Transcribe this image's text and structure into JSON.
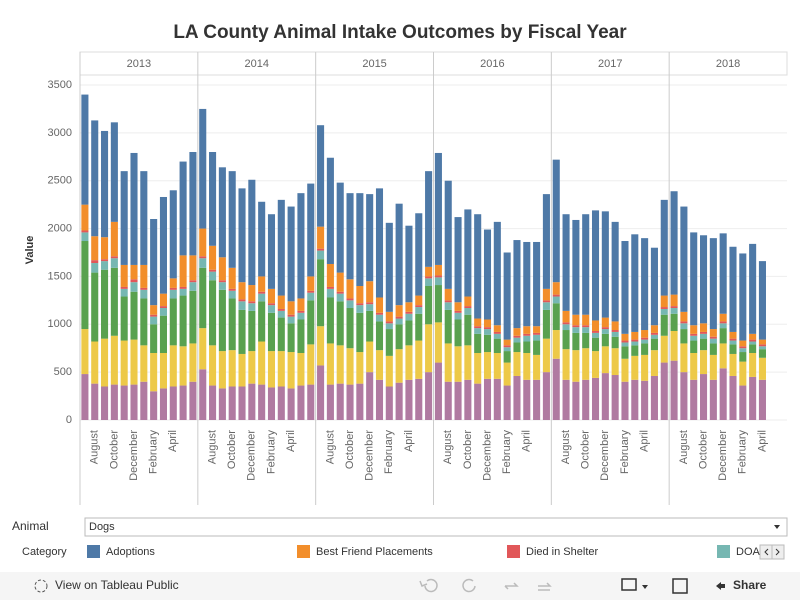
{
  "chart_data": {
    "type": "bar",
    "stacked": true,
    "title": "LA County Animal Intake Outcomes by Fiscal Year",
    "y_label": "Value",
    "ylim": [
      0,
      3500
    ],
    "yticks": [
      0,
      500,
      1000,
      1500,
      2000,
      2500,
      3000,
      3500
    ],
    "grid": true,
    "legend_title": "Category",
    "series": [
      {
        "name": "Adoptions",
        "color": "#4e79a7"
      },
      {
        "name": "Best Friend Placements",
        "color": "#f28e2b"
      },
      {
        "name": "Died in Shelter",
        "color": "#e15759"
      },
      {
        "name": "DOA",
        "color": "#76b7b2"
      },
      {
        "color": "#59a14f"
      },
      {
        "color": "#edc948"
      },
      {
        "color": "#b07aa1"
      }
    ],
    "panels": [
      {
        "title": "2013",
        "categories": [
          null,
          "August",
          null,
          "October",
          null,
          "December",
          null,
          "February",
          null,
          "April",
          null,
          null
        ],
        "values": [
          [
            1150,
            1210,
            1110,
            1040,
            980,
            1170,
            980,
            900,
            1010,
            920,
            980,
            1080
          ],
          [
            270,
            250,
            230,
            360,
            230,
            150,
            240,
            100,
            130,
            100,
            330,
            260
          ],
          [
            20,
            30,
            20,
            20,
            20,
            30,
            20,
            20,
            20,
            20,
            20,
            20
          ],
          [
            90,
            100,
            90,
            100,
            80,
            100,
            90,
            80,
            80,
            90,
            70,
            90
          ],
          [
            920,
            720,
            720,
            710,
            460,
            500,
            490,
            300,
            390,
            490,
            530,
            550
          ],
          [
            470,
            440,
            500,
            510,
            470,
            470,
            380,
            400,
            370,
            430,
            410,
            400
          ],
          [
            480,
            380,
            350,
            370,
            360,
            370,
            400,
            300,
            330,
            350,
            360,
            400
          ]
        ]
      },
      {
        "title": "2014",
        "categories": [
          null,
          "August",
          null,
          "October",
          null,
          "December",
          null,
          "February",
          null,
          "April",
          null,
          null
        ],
        "values": [
          [
            1250,
            980,
            940,
            1010,
            980,
            1100,
            780,
            780,
            1000,
            990,
            1100,
            970
          ],
          [
            290,
            250,
            240,
            220,
            180,
            170,
            160,
            150,
            140,
            140,
            130,
            150
          ],
          [
            20,
            20,
            20,
            20,
            20,
            20,
            20,
            20,
            20,
            20,
            20,
            20
          ],
          [
            100,
            90,
            80,
            80,
            90,
            80,
            80,
            80,
            70,
            70,
            70,
            80
          ],
          [
            630,
            680,
            640,
            540,
            460,
            420,
            420,
            400,
            350,
            300,
            350,
            460
          ],
          [
            430,
            420,
            390,
            380,
            340,
            340,
            450,
            380,
            370,
            380,
            340,
            420
          ],
          [
            530,
            360,
            330,
            350,
            350,
            380,
            370,
            340,
            350,
            330,
            360,
            370
          ]
        ]
      },
      {
        "title": "2015",
        "categories": [
          null,
          "August",
          null,
          "October",
          null,
          "December",
          null,
          "February",
          null,
          "April",
          null,
          null
        ],
        "values": [
          [
            1060,
            1110,
            940,
            900,
            970,
            910,
            1140,
            930,
            1060,
            800,
            860,
            1000
          ],
          [
            230,
            240,
            200,
            200,
            180,
            220,
            160,
            100,
            120,
            100,
            100,
            100
          ],
          [
            20,
            20,
            20,
            20,
            20,
            20,
            20,
            20,
            20,
            20,
            20,
            20
          ],
          [
            90,
            90,
            80,
            80,
            80,
            70,
            70,
            60,
            60,
            70,
            70,
            80
          ],
          [
            700,
            480,
            460,
            420,
            410,
            320,
            300,
            280,
            260,
            260,
            280,
            400
          ],
          [
            410,
            430,
            400,
            380,
            330,
            320,
            310,
            320,
            350,
            360,
            400,
            500
          ],
          [
            570,
            370,
            380,
            370,
            380,
            500,
            420,
            350,
            390,
            420,
            430,
            500
          ]
        ]
      },
      {
        "title": "2016",
        "categories": [
          null,
          "August",
          null,
          "October",
          null,
          "December",
          null,
          "February",
          null,
          "April",
          null,
          null
        ],
        "values": [
          [
            1170,
            1130,
            890,
            910,
            1090,
            940,
            1080,
            910,
            920,
            880,
            880,
            990
          ],
          [
            110,
            120,
            90,
            100,
            80,
            80,
            70,
            60,
            80,
            80,
            70,
            120
          ],
          [
            20,
            20,
            20,
            20,
            20,
            20,
            20,
            20,
            20,
            20,
            20,
            20
          ],
          [
            80,
            80,
            70,
            70,
            60,
            60,
            50,
            40,
            50,
            60,
            60,
            80
          ],
          [
            390,
            350,
            280,
            320,
            200,
            180,
            150,
            120,
            100,
            120,
            150,
            300
          ],
          [
            420,
            400,
            370,
            360,
            320,
            280,
            270,
            240,
            250,
            280,
            260,
            350
          ],
          [
            600,
            400,
            400,
            420,
            380,
            430,
            430,
            360,
            460,
            420,
            420,
            500
          ]
        ]
      },
      {
        "title": "2017",
        "categories": [
          null,
          "August",
          null,
          "October",
          null,
          "December",
          null,
          "February",
          null,
          "April",
          null,
          null
        ],
        "values": [
          [
            1280,
            1010,
            990,
            1050,
            1150,
            1110,
            1040,
            970,
            1020,
            960,
            810,
            1000
          ],
          [
            130,
            120,
            110,
            110,
            110,
            100,
            90,
            70,
            80,
            80,
            80,
            120
          ],
          [
            20,
            20,
            20,
            20,
            20,
            20,
            20,
            20,
            20,
            20,
            20,
            20
          ],
          [
            70,
            60,
            60,
            60,
            50,
            50,
            50,
            40,
            40,
            40,
            40,
            60
          ],
          [
            280,
            200,
            180,
            160,
            140,
            130,
            120,
            130,
            110,
            120,
            120,
            220
          ],
          [
            300,
            320,
            330,
            330,
            280,
            280,
            280,
            240,
            250,
            270,
            270,
            280
          ],
          [
            640,
            420,
            400,
            420,
            440,
            490,
            470,
            400,
            420,
            410,
            460,
            600
          ]
        ]
      },
      {
        "title": "2018",
        "categories": [
          null,
          "August",
          null,
          "October",
          null,
          "December",
          null,
          "February",
          null,
          "April"
        ],
        "values": [
          [
            1080,
            1100,
            970,
            920,
            950,
            840,
            890,
            910,
            940,
            820
          ],
          [
            120,
            100,
            90,
            90,
            80,
            80,
            70,
            60,
            60,
            50
          ],
          [
            20,
            20,
            20,
            20,
            20,
            20,
            20,
            20,
            20,
            20
          ],
          [
            60,
            60,
            50,
            50,
            50,
            50,
            40,
            40,
            30,
            30
          ],
          [
            180,
            150,
            130,
            120,
            120,
            160,
            100,
            100,
            90,
            90
          ],
          [
            310,
            300,
            280,
            250,
            260,
            260,
            230,
            250,
            250,
            230
          ],
          [
            620,
            500,
            420,
            480,
            420,
            540,
            460,
            360,
            450,
            420
          ]
        ]
      }
    ]
  },
  "filter": {
    "label": "Animal",
    "value": "Dogs"
  },
  "toolbar": {
    "view": "View on Tableau Public",
    "share": "Share"
  }
}
